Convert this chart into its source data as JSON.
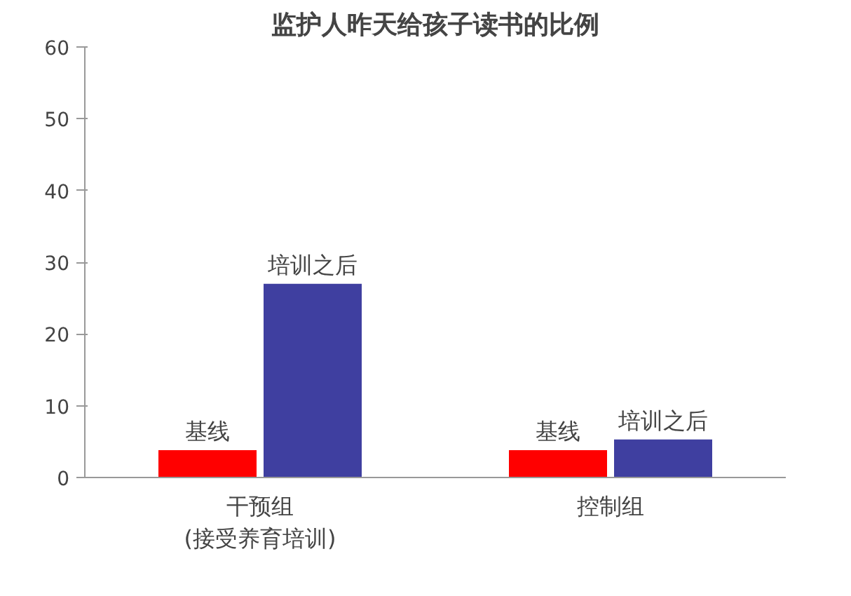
{
  "chart_data": {
    "type": "bar",
    "title": "监护人昨天给孩子读书的比例",
    "categories": [
      "干预组\n(接受养育培训)",
      "控制组"
    ],
    "series": [
      {
        "name": "基线",
        "color": "#ff0000",
        "values": [
          3.8,
          3.8
        ]
      },
      {
        "name": "培训之后",
        "color": "#3f3fa0",
        "values": [
          27,
          5.3
        ]
      }
    ],
    "ylim": [
      0,
      60
    ],
    "yticks": [
      0,
      10,
      20,
      30,
      40,
      50,
      60
    ],
    "grid": false,
    "legend": false
  }
}
